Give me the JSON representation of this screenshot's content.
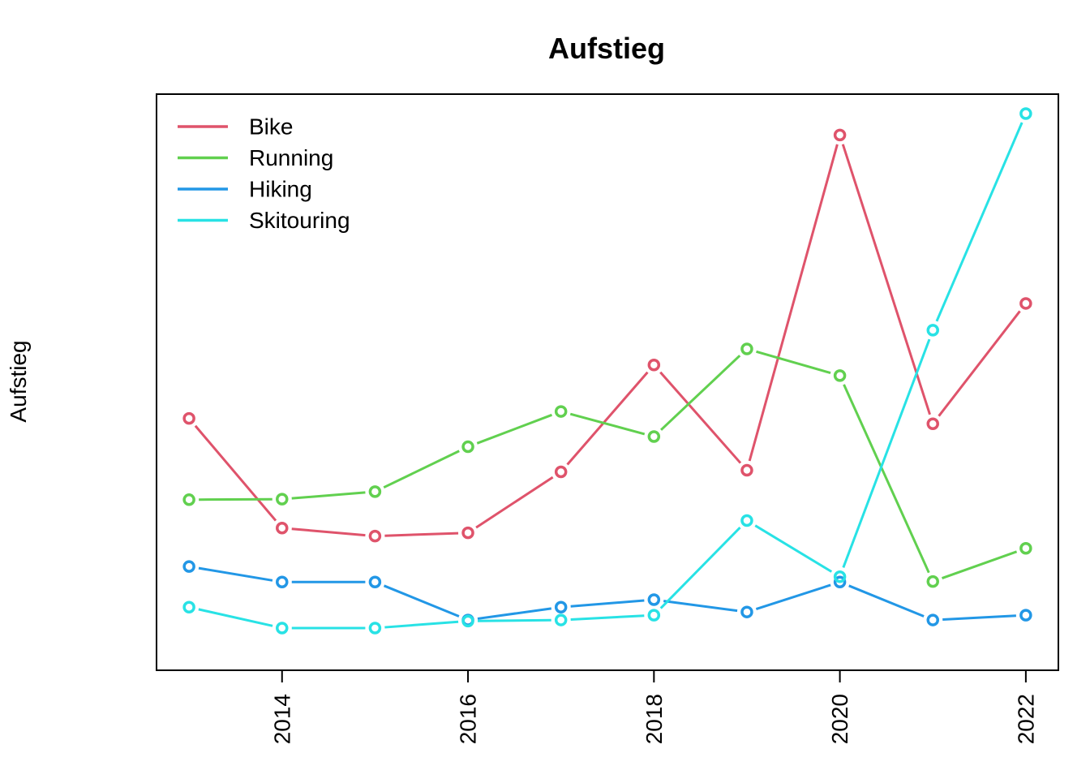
{
  "chart_data": {
    "type": "line",
    "title": "Aufstieg",
    "xlabel": "",
    "ylabel": "Aufstieg",
    "x": [
      2013,
      2014,
      2015,
      2016,
      2017,
      2018,
      2019,
      2020,
      2021,
      2022
    ],
    "x_ticks": [
      2014,
      2016,
      2018,
      2020,
      2022
    ],
    "xlim": [
      2012.65,
      2022.35
    ],
    "ylim": [
      0,
      100
    ],
    "y_ticks_shown": false,
    "grid": false,
    "legend": "top-left",
    "series": [
      {
        "name": "Bike",
        "color": "#DF536B",
        "values": [
          43,
          22.5,
          21,
          21.6,
          33,
          53,
          33.3,
          96,
          42,
          64.5
        ]
      },
      {
        "name": "Running",
        "color": "#61D04F",
        "values": [
          27.8,
          27.9,
          29.3,
          37.7,
          44.3,
          39.6,
          56,
          51,
          12.5,
          18.7
        ]
      },
      {
        "name": "Hiking",
        "color": "#2297E6",
        "values": [
          15.3,
          12.4,
          12.4,
          5.3,
          7.7,
          9.1,
          6.8,
          12.4,
          5.3,
          6.2
        ]
      },
      {
        "name": "Skitouring",
        "color": "#28E2E5",
        "values": [
          7.7,
          3.8,
          3.8,
          5.1,
          5.3,
          6.2,
          23.9,
          13.4,
          59.5,
          100
        ]
      }
    ]
  }
}
